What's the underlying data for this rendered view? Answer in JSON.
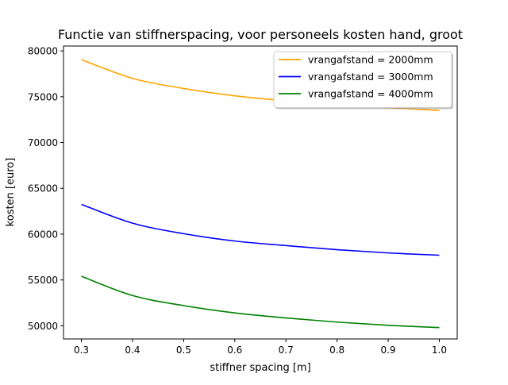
{
  "chart_data": {
    "type": "line",
    "title": "Functie van stiffnerspacing, voor personeels kosten hand, groot",
    "xlabel": "stiffner spacing [m]",
    "ylabel": "kosten [euro]",
    "xlim": [
      0.265,
      1.035
    ],
    "ylim": [
      48560,
      80530
    ],
    "xticks": [
      0.3,
      0.4,
      0.5,
      0.6,
      0.7,
      0.8,
      0.9,
      1.0
    ],
    "xtick_labels": [
      "0.3",
      "0.4",
      "0.5",
      "0.6",
      "0.7",
      "0.8",
      "0.9",
      "1.0"
    ],
    "yticks": [
      50000,
      55000,
      60000,
      65000,
      70000,
      75000,
      80000
    ],
    "ytick_labels": [
      "50000",
      "55000",
      "60000",
      "65000",
      "70000",
      "75000",
      "80000"
    ],
    "grid": false,
    "legend_position": "top-right",
    "x": [
      0.3,
      0.4,
      0.5,
      0.6,
      0.7,
      0.8,
      0.9,
      1.0
    ],
    "series": [
      {
        "name": "vrangafstand = 2000mm",
        "color": "#ffa500",
        "values": [
          79050,
          77000,
          75900,
          75100,
          74550,
          74100,
          73800,
          73500
        ]
      },
      {
        "name": "vrangafstand = 3000mm",
        "color": "#0000ff",
        "values": [
          63250,
          61200,
          60050,
          59250,
          58750,
          58300,
          57950,
          57700
        ]
      },
      {
        "name": "vrangafstand = 4000mm",
        "color": "#008000",
        "values": [
          55400,
          53300,
          52200,
          51400,
          50850,
          50400,
          50050,
          49800
        ]
      }
    ]
  }
}
